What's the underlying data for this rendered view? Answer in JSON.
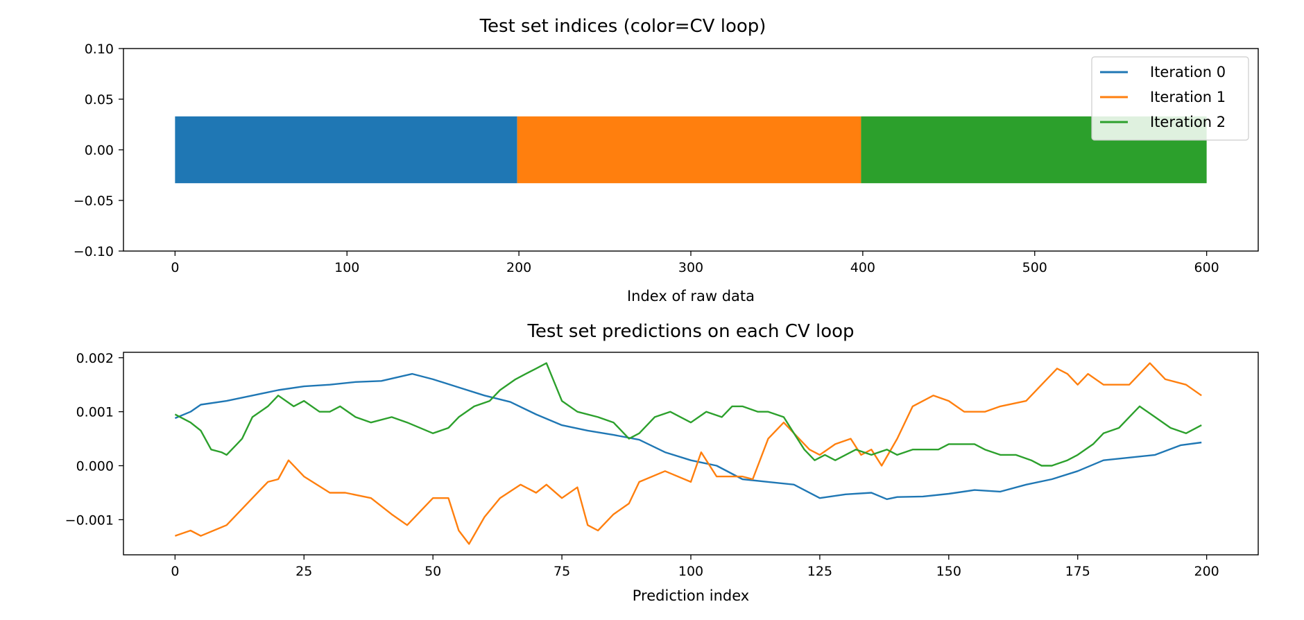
{
  "colors": {
    "c0": "#1f77b4",
    "c1": "#ff7f0e",
    "c2": "#2ca02c"
  },
  "chart_data": [
    {
      "type": "bar",
      "title": "Test set indices (color=CV loop)",
      "xlabel": "Index of raw data",
      "ylabel": "",
      "xlim": [
        -30,
        630
      ],
      "ylim": [
        -0.1,
        0.1
      ],
      "xticks": [
        0,
        100,
        200,
        300,
        400,
        500,
        600
      ],
      "xtick_labels": [
        "0",
        "100",
        "200",
        "300",
        "400",
        "500",
        "600"
      ],
      "yticks": [
        -0.1,
        -0.05,
        0.0,
        0.05,
        0.1
      ],
      "ytick_labels": [
        "−0.10",
        "−0.05",
        "0.00",
        "0.05",
        "0.10"
      ],
      "grid": false,
      "legend_position": "top-right",
      "series": [
        {
          "name": "Iteration 0",
          "x_start": 0,
          "x_end": 199,
          "y_low": -0.033,
          "y_high": 0.033
        },
        {
          "name": "Iteration 1",
          "x_start": 199,
          "x_end": 399,
          "y_low": -0.033,
          "y_high": 0.033
        },
        {
          "name": "Iteration 2",
          "x_start": 399,
          "x_end": 600,
          "y_low": -0.033,
          "y_high": 0.033
        }
      ]
    },
    {
      "type": "line",
      "title": "Test set predictions on each CV loop",
      "xlabel": "Prediction index",
      "ylabel": "",
      "xlim": [
        -10,
        210
      ],
      "ylim": [
        -0.00165,
        0.0021
      ],
      "xticks": [
        0,
        25,
        50,
        75,
        100,
        125,
        150,
        175,
        200
      ],
      "xtick_labels": [
        "0",
        "25",
        "50",
        "75",
        "100",
        "125",
        "150",
        "175",
        "200"
      ],
      "yticks": [
        -0.001,
        0.0,
        0.001,
        0.002
      ],
      "ytick_labels": [
        "−0.001",
        "0.000",
        "0.001",
        "0.002"
      ],
      "grid": false,
      "series": [
        {
          "name": "Iteration 0",
          "x": [
            0,
            3,
            5,
            10,
            15,
            20,
            25,
            30,
            35,
            40,
            46,
            50,
            55,
            60,
            65,
            70,
            75,
            80,
            85,
            90,
            95,
            100,
            105,
            110,
            115,
            120,
            125,
            130,
            135,
            138,
            140,
            145,
            150,
            155,
            160,
            165,
            170,
            175,
            180,
            185,
            190,
            195,
            199
          ],
          "y": [
            0.00088,
            0.001,
            0.00113,
            0.0012,
            0.0013,
            0.0014,
            0.00147,
            0.0015,
            0.00155,
            0.00157,
            0.0017,
            0.0016,
            0.00145,
            0.0013,
            0.00118,
            0.00095,
            0.00075,
            0.00065,
            0.00057,
            0.00048,
            0.00025,
            0.0001,
            0.0,
            -0.00025,
            -0.0003,
            -0.00035,
            -0.0006,
            -0.00053,
            -0.0005,
            -0.00062,
            -0.00058,
            -0.00057,
            -0.00052,
            -0.00045,
            -0.00048,
            -0.00035,
            -0.00025,
            -0.0001,
            0.0001,
            0.00015,
            0.0002,
            0.00038,
            0.00043
          ]
        },
        {
          "name": "Iteration 1",
          "x": [
            0,
            3,
            5,
            10,
            15,
            18,
            20,
            22,
            25,
            30,
            33,
            38,
            42,
            45,
            50,
            53,
            55,
            57,
            60,
            63,
            67,
            70,
            72,
            75,
            78,
            80,
            82,
            85,
            88,
            90,
            95,
            100,
            102,
            105,
            110,
            112,
            115,
            118,
            120,
            123,
            125,
            128,
            131,
            133,
            135,
            137,
            140,
            143,
            147,
            150,
            153,
            157,
            160,
            165,
            168,
            171,
            173,
            175,
            177,
            180,
            185,
            189,
            192,
            196,
            199
          ],
          "y": [
            -0.0013,
            -0.0012,
            -0.0013,
            -0.0011,
            -0.0006,
            -0.0003,
            -0.00025,
            0.0001,
            -0.0002,
            -0.0005,
            -0.0005,
            -0.0006,
            -0.0009,
            -0.0011,
            -0.0006,
            -0.0006,
            -0.0012,
            -0.00145,
            -0.00095,
            -0.0006,
            -0.00035,
            -0.0005,
            -0.00035,
            -0.0006,
            -0.0004,
            -0.0011,
            -0.0012,
            -0.0009,
            -0.0007,
            -0.0003,
            -0.0001,
            -0.0003,
            0.00025,
            -0.0002,
            -0.0002,
            -0.00025,
            0.0005,
            0.0008,
            0.0006,
            0.0003,
            0.0002,
            0.0004,
            0.0005,
            0.0002,
            0.0003,
            0.0,
            0.0005,
            0.0011,
            0.0013,
            0.0012,
            0.001,
            0.001,
            0.0011,
            0.0012,
            0.0015,
            0.0018,
            0.0017,
            0.0015,
            0.0017,
            0.0015,
            0.0015,
            0.0019,
            0.0016,
            0.0015,
            0.0013
          ]
        },
        {
          "name": "Iteration 2",
          "x": [
            0,
            3,
            5,
            7,
            9,
            10,
            12,
            13,
            15,
            18,
            20,
            23,
            25,
            28,
            30,
            32,
            35,
            38,
            42,
            45,
            50,
            53,
            55,
            58,
            61,
            63,
            66,
            68,
            70,
            72,
            75,
            78,
            82,
            85,
            88,
            90,
            93,
            96,
            100,
            103,
            106,
            108,
            110,
            113,
            115,
            118,
            120,
            122,
            124,
            126,
            128,
            130,
            132,
            135,
            138,
            140,
            143,
            145,
            148,
            150,
            153,
            155,
            157,
            160,
            163,
            166,
            168,
            170,
            173,
            175,
            178,
            180,
            183,
            185,
            187,
            190,
            193,
            196,
            199
          ],
          "y": [
            0.00095,
            0.0008,
            0.00065,
            0.0003,
            0.00025,
            0.0002,
            0.0004,
            0.0005,
            0.0009,
            0.0011,
            0.0013,
            0.0011,
            0.0012,
            0.001,
            0.001,
            0.0011,
            0.0009,
            0.0008,
            0.0009,
            0.0008,
            0.0006,
            0.0007,
            0.0009,
            0.0011,
            0.0012,
            0.0014,
            0.0016,
            0.0017,
            0.0018,
            0.0019,
            0.0012,
            0.001,
            0.0009,
            0.0008,
            0.0005,
            0.0006,
            0.0009,
            0.001,
            0.0008,
            0.001,
            0.0009,
            0.0011,
            0.0011,
            0.001,
            0.001,
            0.0009,
            0.0006,
            0.0003,
            0.0001,
            0.0002,
            0.0001,
            0.0002,
            0.0003,
            0.0002,
            0.0003,
            0.0002,
            0.0003,
            0.0003,
            0.0003,
            0.0004,
            0.0004,
            0.0004,
            0.0003,
            0.0002,
            0.0002,
            0.0001,
            0.0,
            0.0,
            0.0001,
            0.0002,
            0.0004,
            0.0006,
            0.0007,
            0.0009,
            0.0011,
            0.0009,
            0.0007,
            0.0006,
            0.00075
          ]
        }
      ]
    }
  ]
}
